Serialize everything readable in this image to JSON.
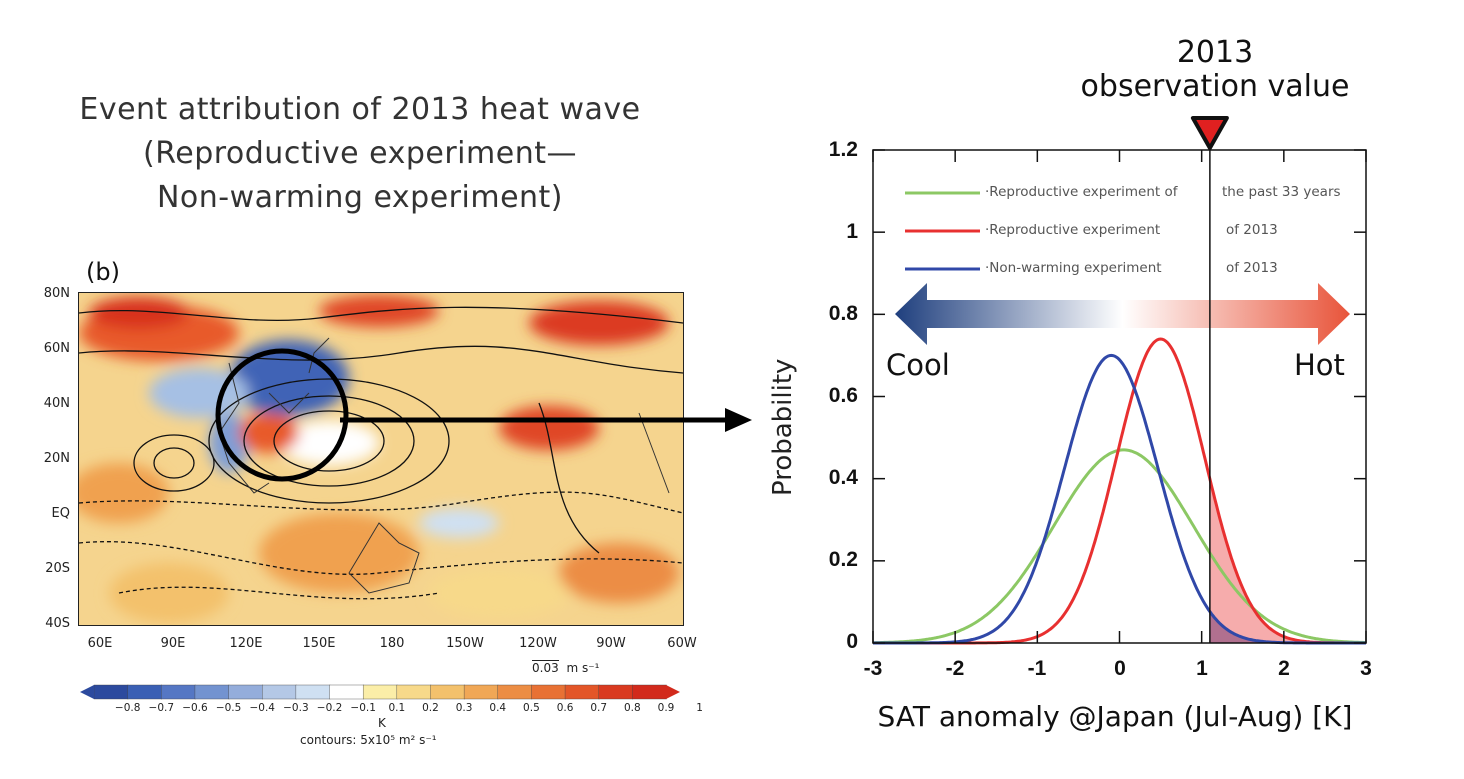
{
  "left_panel": {
    "title_lines": [
      "Event attribution of 2013 heat wave",
      "(Reproductive experiment—",
      "Non-warming experiment)"
    ],
    "panel_label": "(b)",
    "lat_labels": [
      "80N",
      "60N",
      "40N",
      "20N",
      "EQ",
      "20S",
      "40S"
    ],
    "lon_labels": [
      "60E",
      "90E",
      "120E",
      "150E",
      "180",
      "150W",
      "120W",
      "90W",
      "60W"
    ],
    "vector_ref_value": "0.03",
    "vector_ref_unit": "m s⁻¹",
    "colorbar_ticks": [
      "−0.8",
      "−0.7",
      "−0.6",
      "−0.5",
      "−0.4",
      "−0.3",
      "−0.2",
      "−0.1",
      "0.1",
      "0.2",
      "0.3",
      "0.4",
      "0.5",
      "0.6",
      "0.7",
      "0.8",
      "0.9",
      "1"
    ],
    "colorbar_unit": "K",
    "contours_note": "contours: 5x10⁵ m² s⁻¹",
    "colorbar_colors": [
      "#2c4a9e",
      "#3a5fb4",
      "#5577c4",
      "#7393d0",
      "#94addb",
      "#b4c8e6",
      "#cfe0f2",
      "#ffffff",
      "#fbeea8",
      "#f7d98a",
      "#f3c16c",
      "#f0a756",
      "#ec8d44",
      "#e87134",
      "#e35628",
      "#d93a20",
      "#d22a1c"
    ]
  },
  "right_panel": {
    "obs_label_lines": [
      "2013",
      "observation value"
    ],
    "marker_color": "#e02020",
    "cool_label": "Cool",
    "hot_label": "Hot",
    "legend": [
      {
        "label": "·Reproductive experiment of",
        "suffix": "the past 33 years",
        "color": "#8cc864"
      },
      {
        "label": "·Reproductive experiment",
        "suffix": "of 2013",
        "color": "#e83030"
      },
      {
        "label": "·Non-warming experiment",
        "suffix": "of 2013",
        "color": "#3048a8"
      }
    ]
  },
  "chart_data": {
    "type": "line",
    "xlabel": "SAT anomaly @Japan (Jul-Aug) [K]",
    "ylabel": "Probability",
    "xlim": [
      -3,
      3
    ],
    "ylim": [
      0,
      1.2
    ],
    "x_ticks": [
      "-3",
      "-2",
      "-1",
      "0",
      "1",
      "2",
      "3"
    ],
    "y_ticks": [
      "0",
      "0.2",
      "0.4",
      "0.6",
      "0.8",
      "1",
      "1.2"
    ],
    "observation_x": 1.1,
    "series": [
      {
        "name": "Reproductive experiment of the past 33 years",
        "color": "#8cc864",
        "mean": 0.05,
        "sd": 0.85,
        "peak": 0.47
      },
      {
        "name": "Reproductive experiment of 2013",
        "color": "#e83030",
        "mean": 0.5,
        "sd": 0.54,
        "peak": 0.74
      },
      {
        "name": "Non-warming experiment of 2013",
        "color": "#3048a8",
        "mean": -0.1,
        "sd": 0.57,
        "peak": 0.7
      }
    ]
  }
}
